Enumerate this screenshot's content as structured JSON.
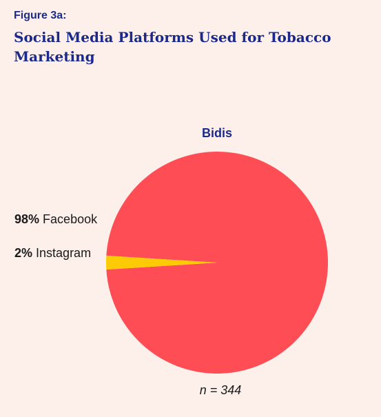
{
  "figure": {
    "label": "Figure 3a:",
    "title": "Social Media Platforms Used for Tobacco Marketing"
  },
  "chart_data": {
    "type": "pie",
    "title": "Bidis",
    "slices": [
      {
        "label": "Facebook",
        "percent_label": "98%",
        "value": 98,
        "color": "#fe4d55"
      },
      {
        "label": "Instagram",
        "percent_label": "2%",
        "value": 2,
        "color": "#fdcb05"
      }
    ],
    "n_label": "n = 344"
  }
}
